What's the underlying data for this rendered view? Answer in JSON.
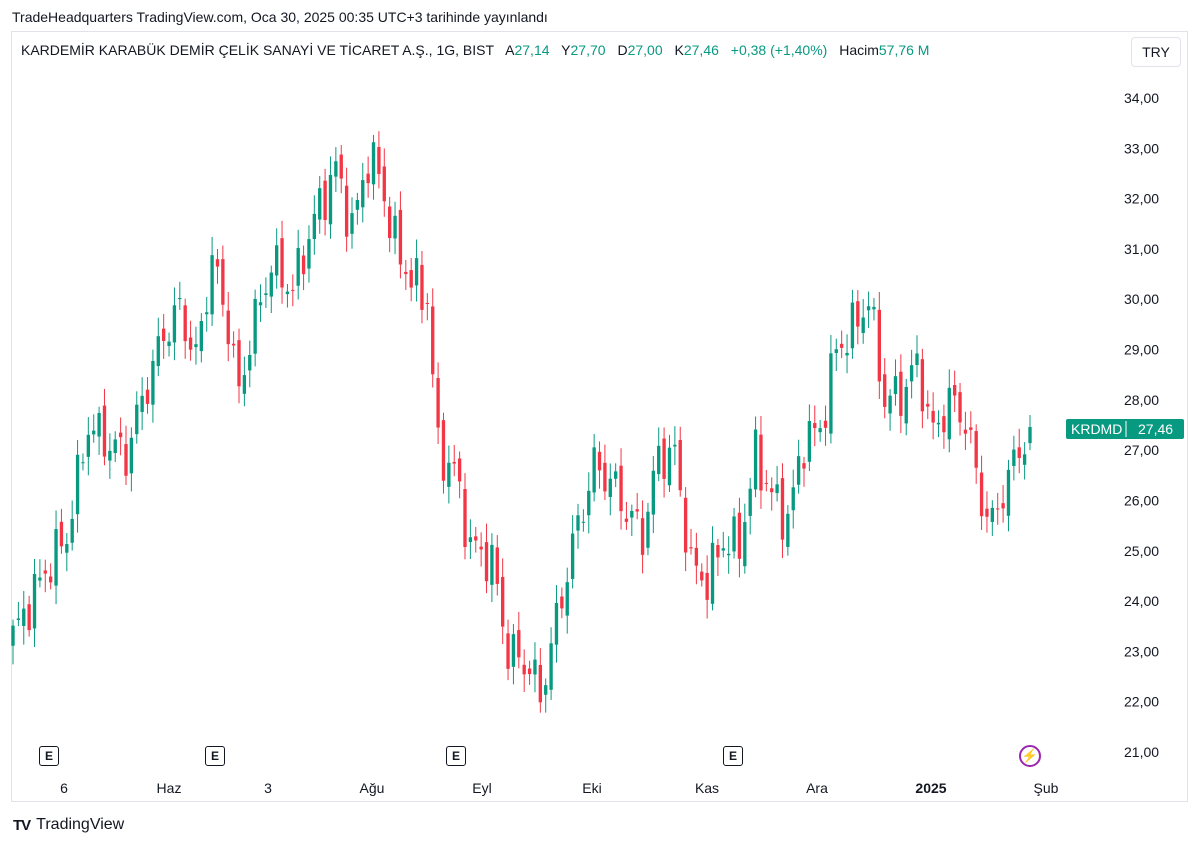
{
  "caption": "TradeHeadquarters TradingView.com, Oca 30, 2025 00:35 UTC+3 tarihinde yayınlandı",
  "legend": {
    "symbol_title": "KARDEMİR KARABÜK DEMİR ÇELİK SANAYİ VE TİCARET A.Ş., 1G, BIST",
    "open_label": "A",
    "open_value": "27,14",
    "high_label": "Y",
    "high_value": "27,70",
    "low_label": "D",
    "low_value": "27,00",
    "close_label": "K",
    "close_value": "27,46",
    "change": "+0,38 (+1,40%)",
    "volume_label": "Hacim",
    "volume_value": "57,76 M"
  },
  "currency": "TRY",
  "brand": {
    "logo": "TV",
    "name": "TradingView"
  },
  "event_marker_label": "E",
  "colors": {
    "up": "#089981",
    "down": "#f23645",
    "frame": "#e0e3eb",
    "event_accent": "#9c27b0"
  },
  "chart_data": {
    "type": "candlestick",
    "symbol": "KRDMD",
    "last_price": "27,46",
    "y_ticks": [
      "34,00",
      "33,00",
      "32,00",
      "31,00",
      "30,00",
      "29,00",
      "28,00",
      "27,00",
      "26,00",
      "25,00",
      "24,00",
      "23,00",
      "22,00",
      "21,00"
    ],
    "x_ticks": [
      "6",
      "Haz",
      "3",
      "Ağu",
      "Eyl",
      "Eki",
      "Kas",
      "Ara",
      "2025",
      "Şub"
    ],
    "ylim": [
      21,
      34
    ],
    "event_markers": [
      "E",
      "E",
      "E",
      "E"
    ],
    "waypoints": [
      [
        0,
        23.3
      ],
      [
        6,
        24.6
      ],
      [
        10,
        25.3
      ],
      [
        14,
        27.5
      ],
      [
        17,
        27.2
      ],
      [
        21,
        26.9
      ],
      [
        24,
        28.0
      ],
      [
        28,
        29.3
      ],
      [
        31,
        29.8
      ],
      [
        34,
        28.8
      ],
      [
        37,
        30.8
      ],
      [
        40,
        29.5
      ],
      [
        42,
        28.1
      ],
      [
        44,
        29.2
      ],
      [
        48,
        30.7
      ],
      [
        52,
        30.2
      ],
      [
        56,
        31.6
      ],
      [
        60,
        32.6
      ],
      [
        63,
        31.4
      ],
      [
        66,
        32.8
      ],
      [
        68,
        32.5
      ],
      [
        71,
        31.1
      ],
      [
        74,
        30.4
      ],
      [
        77,
        30.0
      ],
      [
        79,
        27.0
      ],
      [
        82,
        26.6
      ],
      [
        85,
        25.1
      ],
      [
        89,
        24.8
      ],
      [
        92,
        23.0
      ],
      [
        96,
        22.7
      ],
      [
        98,
        22.1
      ],
      [
        101,
        23.6
      ],
      [
        104,
        25.1
      ],
      [
        108,
        26.7
      ],
      [
        111,
        26.4
      ],
      [
        114,
        25.8
      ],
      [
        117,
        25.3
      ],
      [
        120,
        26.9
      ],
      [
        123,
        26.9
      ],
      [
        126,
        24.7
      ],
      [
        129,
        24.4
      ],
      [
        132,
        25.2
      ],
      [
        135,
        25.1
      ],
      [
        138,
        26.9
      ],
      [
        141,
        26.1
      ],
      [
        144,
        25.6
      ],
      [
        147,
        27.2
      ],
      [
        150,
        27.4
      ],
      [
        153,
        29.0
      ],
      [
        156,
        29.4
      ],
      [
        159,
        30.0
      ],
      [
        162,
        28.0
      ],
      [
        165,
        28.1
      ],
      [
        168,
        28.7
      ],
      [
        171,
        27.3
      ],
      [
        174,
        28.0
      ],
      [
        177,
        27.6
      ],
      [
        180,
        26.0
      ],
      [
        182,
        25.5
      ],
      [
        184,
        26.2
      ],
      [
        187,
        27.0
      ],
      [
        189,
        27.46
      ]
    ]
  }
}
